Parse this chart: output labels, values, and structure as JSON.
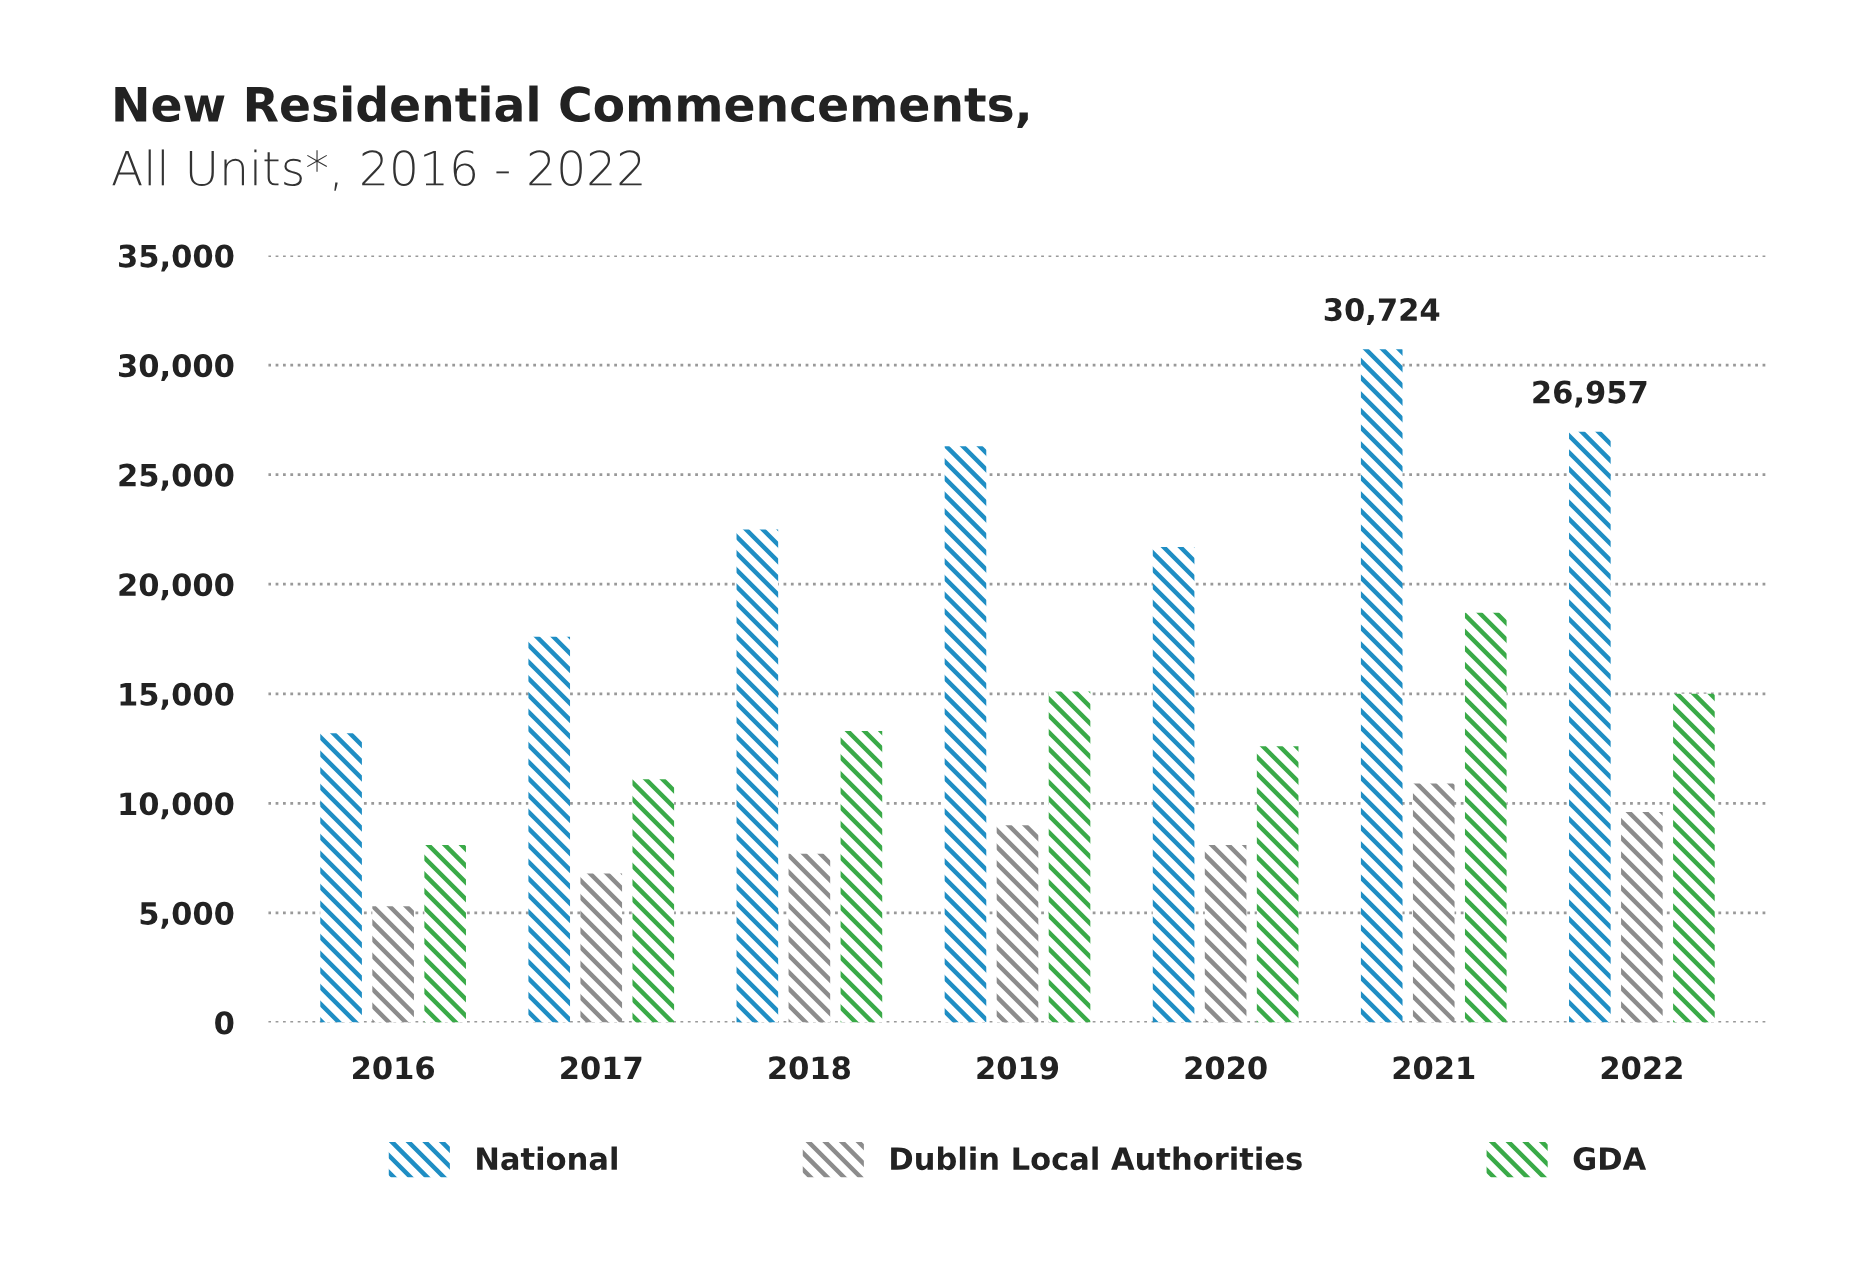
{
  "chart_data": {
    "type": "bar",
    "title": "New Residential Commencements,",
    "subtitle": "All Units*, 2016 - 2022",
    "categories": [
      "2016",
      "2017",
      "2018",
      "2019",
      "2020",
      "2021",
      "2022"
    ],
    "series": [
      {
        "name": "National",
        "color": "#1f8ec4",
        "values": [
          13200,
          17600,
          22500,
          26300,
          21700,
          30724,
          26957
        ],
        "value_labels": [
          null,
          null,
          null,
          null,
          null,
          "30,724",
          "26,957"
        ]
      },
      {
        "name": "Dublin Local Authorities",
        "color": "#8c8c8c",
        "values": [
          5300,
          6800,
          7700,
          9000,
          8100,
          10900,
          9600
        ]
      },
      {
        "name": "GDA",
        "color": "#3aaa48",
        "values": [
          8100,
          11100,
          13300,
          15100,
          12600,
          18700,
          15000
        ]
      }
    ],
    "ylim": [
      0,
      35000
    ],
    "yticks": [
      {
        "value": 0,
        "label": "0"
      },
      {
        "value": 5000,
        "label": "5,000"
      },
      {
        "value": 10000,
        "label": "10,000"
      },
      {
        "value": 15000,
        "label": "15,000"
      },
      {
        "value": 20000,
        "label": "20,000"
      },
      {
        "value": 25000,
        "label": "25,000"
      },
      {
        "value": 30000,
        "label": "30,000"
      },
      {
        "value": 35000,
        "label": "35,000"
      }
    ],
    "grid": "y",
    "legend": "bottom"
  }
}
